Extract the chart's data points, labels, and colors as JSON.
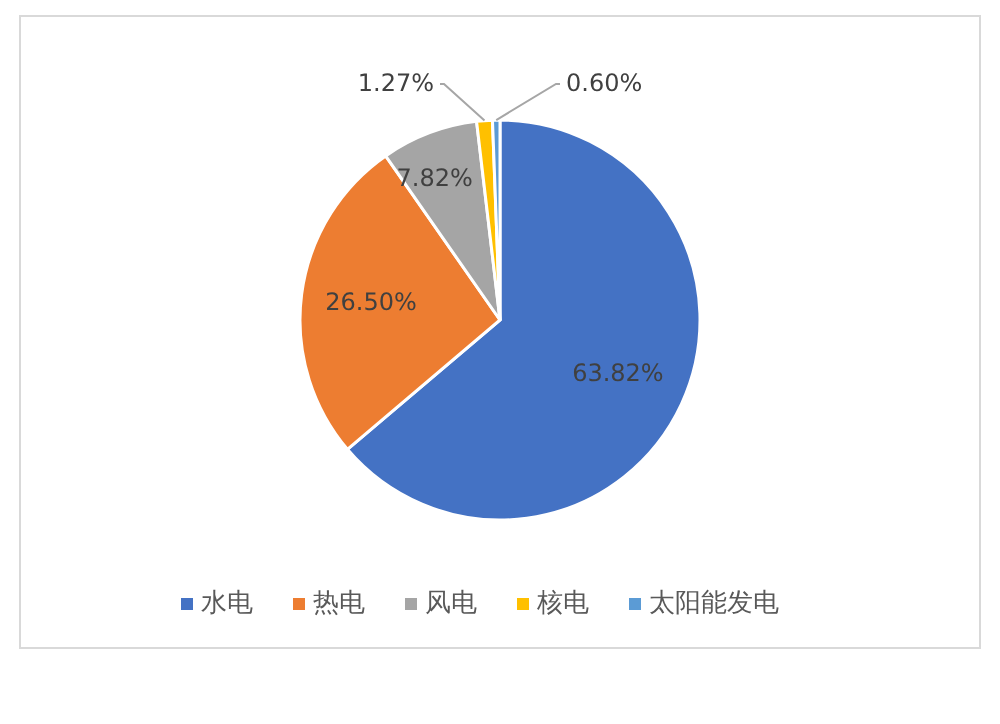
{
  "chart_data": {
    "type": "pie",
    "categories": [
      "水电",
      "热电",
      "风电",
      "核电",
      "太阳能发电"
    ],
    "values": [
      63.82,
      26.5,
      7.82,
      1.27,
      0.6
    ],
    "value_labels": [
      "63.82%",
      "26.50%",
      "7.82%",
      "1.27%",
      "0.60%"
    ],
    "colors": [
      "#4472c4",
      "#ed7d31",
      "#a5a5a5",
      "#ffc000",
      "#5b9bd5"
    ],
    "legend": "bottom"
  }
}
